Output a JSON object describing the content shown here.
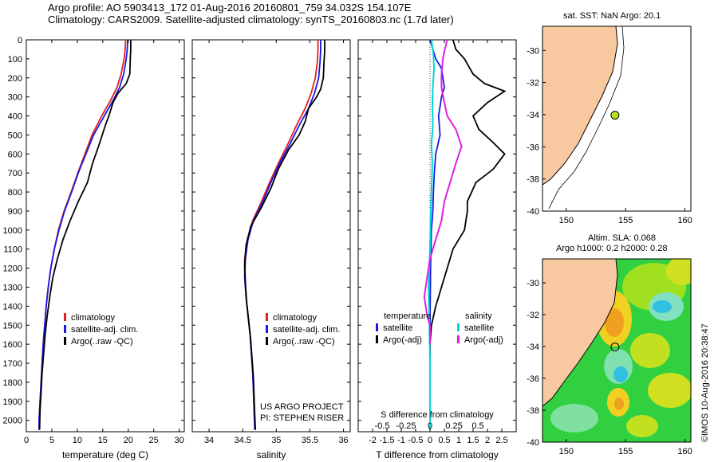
{
  "header": {
    "line1": "Argo profile: AO 5903413_172 01-Aug-2016 20160801_759 34.032S 154.107E",
    "line2": "Climatology: CARS2009. Satellite-adjusted climatology: synTS_20160803.nc (1.7d later)"
  },
  "colors": {
    "climatology": "#e02020",
    "satellite": "#1a1ae0",
    "argo": "#000000",
    "sat_salinity": "#00d8d8",
    "argo_adj_salinity": "#e020e0",
    "land": "#f8c8a0"
  },
  "chart_data": [
    {
      "type": "line",
      "panel": "temperature",
      "xlabel": "temperature (deg C)",
      "xlim": [
        0,
        31
      ],
      "ylim": [
        2060,
        0
      ],
      "xticks": [
        "0",
        "5",
        "10",
        "15",
        "20",
        "25",
        "30"
      ],
      "yticks": [
        "0",
        "100",
        "200",
        "300",
        "400",
        "500",
        "600",
        "700",
        "800",
        "900",
        "1000",
        "1100",
        "1200",
        "1300",
        "1400",
        "1500",
        "1600",
        "1700",
        "1800",
        "1900",
        "2000"
      ],
      "legend": [
        "climatology",
        "satellite-adj. clim.",
        "Argo(..raw -QC)"
      ],
      "series": [
        {
          "name": "climatology",
          "color": "#e02020",
          "points": [
            [
              19.5,
              0
            ],
            [
              19.4,
              50
            ],
            [
              19.2,
              100
            ],
            [
              18.6,
              180
            ],
            [
              17.8,
              250
            ],
            [
              16.5,
              320
            ],
            [
              14.8,
              400
            ],
            [
              12.9,
              500
            ],
            [
              11.5,
              600
            ],
            [
              10.1,
              700
            ],
            [
              8.8,
              800
            ],
            [
              7.4,
              900
            ],
            [
              6.3,
              1000
            ],
            [
              5.5,
              1100
            ],
            [
              4.8,
              1200
            ],
            [
              4.3,
              1300
            ],
            [
              3.9,
              1400
            ],
            [
              3.6,
              1500
            ],
            [
              3.3,
              1600
            ],
            [
              3.1,
              1700
            ],
            [
              2.9,
              1800
            ],
            [
              2.7,
              1900
            ],
            [
              2.5,
              2000
            ],
            [
              2.5,
              2050
            ]
          ]
        },
        {
          "name": "satellite-adj. clim.",
          "color": "#1a1ae0",
          "points": [
            [
              19.9,
              0
            ],
            [
              19.8,
              50
            ],
            [
              19.6,
              100
            ],
            [
              19.1,
              180
            ],
            [
              18.3,
              250
            ],
            [
              17.0,
              320
            ],
            [
              15.3,
              400
            ],
            [
              13.2,
              500
            ],
            [
              11.7,
              600
            ],
            [
              10.2,
              700
            ],
            [
              8.9,
              800
            ],
            [
              7.5,
              900
            ],
            [
              6.4,
              1000
            ],
            [
              5.5,
              1100
            ],
            [
              4.8,
              1200
            ],
            [
              4.3,
              1300
            ],
            [
              3.9,
              1400
            ],
            [
              3.6,
              1500
            ],
            [
              3.3,
              1600
            ],
            [
              3.1,
              1700
            ],
            [
              2.9,
              1800
            ],
            [
              2.7,
              1900
            ],
            [
              2.5,
              2000
            ],
            [
              2.5,
              2050
            ]
          ]
        },
        {
          "name": "Argo(..raw -QC)",
          "color": "#000000",
          "points": [
            [
              20.5,
              0
            ],
            [
              20.5,
              50
            ],
            [
              20.4,
              100
            ],
            [
              20.3,
              180
            ],
            [
              19.6,
              230
            ],
            [
              18.0,
              280
            ],
            [
              17.0,
              330
            ],
            [
              16.2,
              400
            ],
            [
              15.5,
              450
            ],
            [
              14.3,
              550
            ],
            [
              13.0,
              650
            ],
            [
              12.0,
              750
            ],
            [
              10.2,
              850
            ],
            [
              8.6,
              950
            ],
            [
              7.2,
              1050
            ],
            [
              6.1,
              1150
            ],
            [
              5.2,
              1250
            ],
            [
              4.6,
              1350
            ],
            [
              4.1,
              1450
            ],
            [
              3.7,
              1550
            ],
            [
              3.4,
              1650
            ],
            [
              3.1,
              1750
            ],
            [
              2.9,
              1850
            ],
            [
              2.7,
              1950
            ],
            [
              2.6,
              2050
            ]
          ]
        }
      ]
    },
    {
      "type": "line",
      "panel": "salinity",
      "xlabel": "salinity",
      "xlim": [
        33.75,
        36.1
      ],
      "ylim": [
        2060,
        0
      ],
      "xticks": [
        "34",
        "34.5",
        "35",
        "35.5",
        "36"
      ],
      "legend": [
        "climatology",
        "satellite-adj. clim.",
        "Argo(..raw -QC)"
      ],
      "annotation": [
        "US ARGO PROJECT",
        "PI: STEPHEN RISER"
      ],
      "series": [
        {
          "name": "climatology",
          "color": "#e02020",
          "points": [
            [
              35.62,
              0
            ],
            [
              35.62,
              60
            ],
            [
              35.61,
              120
            ],
            [
              35.58,
              200
            ],
            [
              35.52,
              280
            ],
            [
              35.43,
              360
            ],
            [
              35.3,
              450
            ],
            [
              35.17,
              550
            ],
            [
              35.03,
              650
            ],
            [
              34.9,
              750
            ],
            [
              34.78,
              850
            ],
            [
              34.65,
              950
            ],
            [
              34.57,
              1050
            ],
            [
              34.53,
              1150
            ],
            [
              34.53,
              1250
            ],
            [
              34.55,
              1350
            ],
            [
              34.58,
              1450
            ],
            [
              34.61,
              1550
            ],
            [
              34.63,
              1650
            ],
            [
              34.65,
              1750
            ],
            [
              34.66,
              1850
            ],
            [
              34.67,
              1950
            ],
            [
              34.68,
              2050
            ]
          ]
        },
        {
          "name": "satellite-adj. clim.",
          "color": "#1a1ae0",
          "points": [
            [
              35.66,
              0
            ],
            [
              35.66,
              60
            ],
            [
              35.65,
              120
            ],
            [
              35.63,
              200
            ],
            [
              35.57,
              280
            ],
            [
              35.48,
              360
            ],
            [
              35.34,
              450
            ],
            [
              35.2,
              550
            ],
            [
              35.05,
              650
            ],
            [
              34.92,
              750
            ],
            [
              34.8,
              850
            ],
            [
              34.66,
              950
            ],
            [
              34.58,
              1050
            ],
            [
              34.54,
              1150
            ],
            [
              34.53,
              1250
            ],
            [
              34.55,
              1350
            ],
            [
              34.58,
              1450
            ],
            [
              34.61,
              1550
            ],
            [
              34.63,
              1650
            ],
            [
              34.65,
              1750
            ],
            [
              34.66,
              1850
            ],
            [
              34.67,
              1950
            ],
            [
              34.68,
              2050
            ]
          ]
        },
        {
          "name": "Argo(..raw -QC)",
          "color": "#000000",
          "points": [
            [
              35.72,
              0
            ],
            [
              35.72,
              60
            ],
            [
              35.71,
              120
            ],
            [
              35.7,
              200
            ],
            [
              35.66,
              260
            ],
            [
              35.6,
              300
            ],
            [
              35.48,
              360
            ],
            [
              35.43,
              430
            ],
            [
              35.34,
              500
            ],
            [
              35.18,
              580
            ],
            [
              35.03,
              680
            ],
            [
              34.92,
              780
            ],
            [
              34.78,
              880
            ],
            [
              34.62,
              980
            ],
            [
              34.55,
              1080
            ],
            [
              34.53,
              1180
            ],
            [
              34.54,
              1280
            ],
            [
              34.56,
              1380
            ],
            [
              34.59,
              1480
            ],
            [
              34.62,
              1580
            ],
            [
              34.64,
              1680
            ],
            [
              34.66,
              1780
            ],
            [
              34.67,
              1880
            ],
            [
              34.68,
              1980
            ],
            [
              34.69,
              2050
            ]
          ]
        }
      ]
    },
    {
      "type": "line",
      "panel": "difference",
      "xlabel": "T difference from climatology",
      "xlabel_top": "S difference from climatology",
      "xlim": [
        -2.5,
        3.0
      ],
      "ylim": [
        2060,
        0
      ],
      "xticks": [
        "-2",
        "-1.5",
        "-1",
        "-0.5",
        "0",
        "0.5",
        "1",
        "1.5",
        "2",
        "2.5"
      ],
      "xticks_salinity": [
        "-0.5",
        "-0.25",
        "0",
        "0.25",
        "0.5"
      ],
      "legend_temperature": {
        "heading": "temperature",
        "items": [
          "satellite",
          "Argo(-adj)"
        ]
      },
      "legend_salinity": {
        "heading": "salinity",
        "items": [
          "satellite",
          "Argo(-adj)"
        ]
      },
      "series": [
        {
          "name": "temperature satellite",
          "color": "#1a1ae0",
          "points": [
            [
              0.0,
              0
            ],
            [
              0.1,
              50
            ],
            [
              0.2,
              100
            ],
            [
              0.4,
              150
            ],
            [
              0.45,
              200
            ],
            [
              0.5,
              250
            ],
            [
              0.4,
              300
            ],
            [
              0.3,
              400
            ],
            [
              0.35,
              500
            ],
            [
              0.2,
              600
            ],
            [
              0.15,
              700
            ],
            [
              0.12,
              800
            ],
            [
              0.1,
              900
            ],
            [
              0.05,
              1000
            ],
            [
              0.02,
              1200
            ],
            [
              0.0,
              1500
            ],
            [
              0.0,
              2050
            ]
          ]
        },
        {
          "name": "temperature Argo(-adj)",
          "color": "#000000",
          "points": [
            [
              0.8,
              0
            ],
            [
              0.9,
              50
            ],
            [
              1.2,
              100
            ],
            [
              1.5,
              180
            ],
            [
              1.9,
              230
            ],
            [
              2.6,
              270
            ],
            [
              2.0,
              330
            ],
            [
              1.5,
              400
            ],
            [
              1.7,
              470
            ],
            [
              2.2,
              540
            ],
            [
              2.6,
              600
            ],
            [
              2.2,
              680
            ],
            [
              1.6,
              750
            ],
            [
              1.3,
              850
            ],
            [
              1.3,
              900
            ],
            [
              1.2,
              1000
            ],
            [
              0.8,
              1100
            ],
            [
              0.6,
              1200
            ],
            [
              0.4,
              1300
            ],
            [
              0.2,
              1400
            ],
            [
              0.05,
              1500
            ],
            [
              0.0,
              1600
            ],
            [
              0.0,
              2050
            ]
          ]
        },
        {
          "name": "salinity satellite",
          "color": "#00d8d8",
          "points": [
            [
              0.05,
              0
            ],
            [
              0.12,
              80
            ],
            [
              0.14,
              150
            ],
            [
              0.1,
              250
            ],
            [
              0.08,
              350
            ],
            [
              0.1,
              450
            ],
            [
              0.05,
              550
            ],
            [
              0.08,
              650
            ],
            [
              0.06,
              750
            ],
            [
              0.04,
              850
            ],
            [
              0.02,
              950
            ],
            [
              0.0,
              1100
            ],
            [
              -0.05,
              1300
            ],
            [
              -0.02,
              1500
            ],
            [
              0.0,
              1700
            ],
            [
              0.0,
              2050
            ]
          ]
        },
        {
          "name": "salinity Argo(-adj)",
          "color": "#e020e0",
          "points": [
            [
              0.6,
              0
            ],
            [
              0.5,
              60
            ],
            [
              0.45,
              100
            ],
            [
              0.4,
              180
            ],
            [
              0.4,
              250
            ],
            [
              0.5,
              330
            ],
            [
              0.6,
              400
            ],
            [
              0.9,
              470
            ],
            [
              1.1,
              560
            ],
            [
              0.9,
              650
            ],
            [
              0.7,
              750
            ],
            [
              0.5,
              850
            ],
            [
              0.4,
              950
            ],
            [
              0.2,
              1050
            ],
            [
              0.0,
              1150
            ],
            [
              -0.1,
              1250
            ],
            [
              -0.2,
              1350
            ],
            [
              -0.1,
              1450
            ],
            [
              0.0,
              1500
            ],
            [
              0.0,
              1600
            ]
          ]
        }
      ]
    },
    {
      "type": "map",
      "panel": "sst-map",
      "title": "sat. SST: NaN Argo: 20.1",
      "xlim": [
        148,
        160.5
      ],
      "ylim": [
        -40,
        -28.5
      ],
      "xticks": [
        "150",
        "155",
        "160"
      ],
      "yticks": [
        "-30",
        "-32",
        "-34",
        "-36",
        "-38",
        "-40"
      ],
      "marker": {
        "lon": 154.107,
        "lat": -34.032,
        "color": "#b8e020"
      }
    },
    {
      "type": "map",
      "panel": "sla-map",
      "title": "Altim. SLA: 0.068",
      "subtitle": "Argo h1000: 0.2 h2000: 0.28",
      "xlim": [
        148,
        160.5
      ],
      "ylim": [
        -40,
        -28.5
      ],
      "xticks": [
        "150",
        "155",
        "160"
      ],
      "yticks": [
        "-30",
        "-32",
        "-34",
        "-36",
        "-38",
        "-40"
      ],
      "marker": {
        "lon": 154.107,
        "lat": -34.032,
        "color": "none"
      }
    }
  ],
  "copyright": "©IMOS 10-Aug-2016 20:38:47"
}
